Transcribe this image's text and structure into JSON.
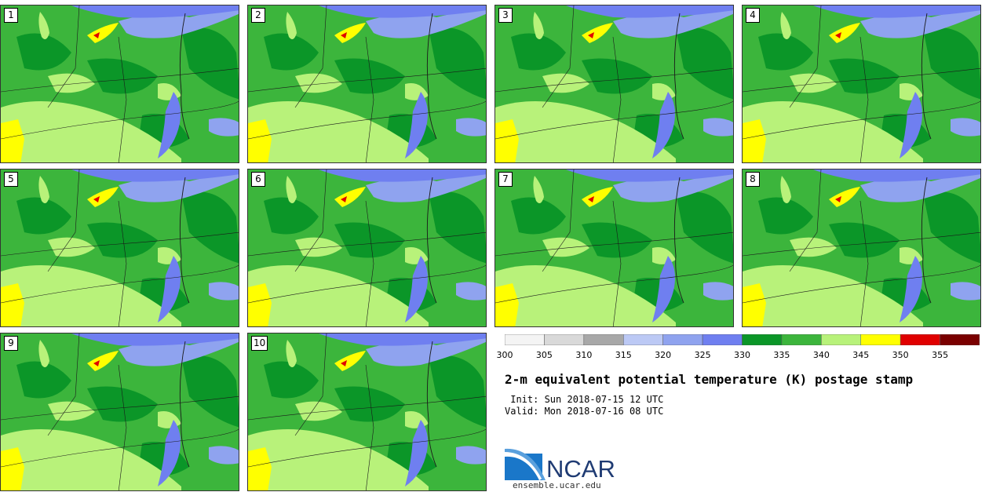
{
  "figure": {
    "title": "2-m equivalent potential temperature (K) postage stamp",
    "init": " Init: Sun 2018-07-15 12 UTC",
    "valid": "Valid: Mon 2018-07-16 08 UTC",
    "logo_text": "NCAR",
    "url": "ensemble.ucar.edu"
  },
  "members": [
    "1",
    "2",
    "3",
    "4",
    "5",
    "6",
    "7",
    "8",
    "9",
    "10"
  ],
  "colorbar": {
    "ticks": [
      "300",
      "305",
      "310",
      "315",
      "320",
      "325",
      "330",
      "335",
      "340",
      "345",
      "350",
      "355"
    ],
    "colors": [
      "#f4f4f4",
      "#d9d9d9",
      "#a8a8a8",
      "#bcc9f5",
      "#8fa3ef",
      "#6f7ff0",
      "#0b9628",
      "#3cb53c",
      "#b8f27a",
      "#ffff00",
      "#e00000",
      "#7a0000"
    ]
  },
  "map_colors": {
    "base": "#3cb53c",
    "dark_green": "#0b9628",
    "light_green": "#b8f27a",
    "yellow": "#ffff00",
    "blue": "#6f7ff0",
    "light_blue": "#8fa3ef",
    "red": "#e00000"
  }
}
